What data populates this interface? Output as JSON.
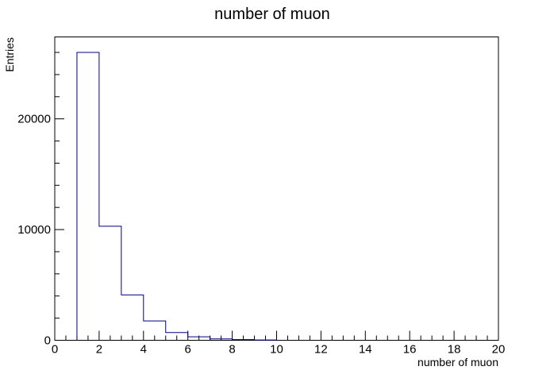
{
  "chart_data": {
    "type": "bar",
    "title": "number of muon",
    "xlabel": "number of muon",
    "ylabel": "Entries",
    "xlim": [
      0,
      20
    ],
    "ylim": [
      0,
      27400
    ],
    "grid": false,
    "legend": "none",
    "line_color": "#000080",
    "bin_edges": [
      1,
      2,
      3,
      4,
      5,
      6,
      7,
      8,
      9,
      10
    ],
    "values": [
      26000,
      10300,
      4100,
      1750,
      700,
      310,
      130,
      60,
      25
    ],
    "x_ticks": [
      "0",
      "2",
      "4",
      "6",
      "8",
      "10",
      "12",
      "14",
      "16",
      "18",
      "20"
    ],
    "y_ticks": [
      "0",
      "10000",
      "20000"
    ]
  }
}
